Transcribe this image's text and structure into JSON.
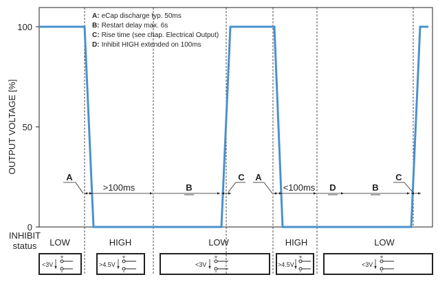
{
  "y_axis": {
    "label": "OUTPUT VOLTAGE [%]",
    "ticks": [
      "100",
      "50",
      "0"
    ]
  },
  "inhibit_label": [
    "INHIBIT",
    "status"
  ],
  "legend": [
    {
      "key": "A:",
      "text": "eCap discharge typ. 50ms"
    },
    {
      "key": "B:",
      "text": "Restart delay max. 6s"
    },
    {
      "key": "C:",
      "text": "Rise time (see chap. Electrical Output)"
    },
    {
      "key": "D:",
      "text": "Inhibit HIGH extended on 100ms"
    }
  ],
  "interval_letters": [
    "A",
    "B",
    "C",
    "A",
    "D",
    "B",
    "C"
  ],
  "interval_times": [
    ">100ms",
    "<100ms"
  ],
  "states": [
    "LOW",
    "HIGH",
    "LOW",
    "HIGH",
    "LOW"
  ],
  "switch_boxes": [
    {
      "voltage": "<3V",
      "plus": "+",
      "minus": "-"
    },
    {
      "voltage": ">4.5V",
      "plus": "+",
      "minus": "-"
    },
    {
      "voltage": "<3V",
      "plus": "+",
      "minus": "-"
    },
    {
      "voltage": ">4.5V",
      "plus": "+",
      "minus": "-"
    },
    {
      "voltage": "<3V",
      "plus": "+",
      "minus": "-"
    }
  ],
  "colors": {
    "waveform": "#4a90cd",
    "ink": "#231f20"
  }
}
